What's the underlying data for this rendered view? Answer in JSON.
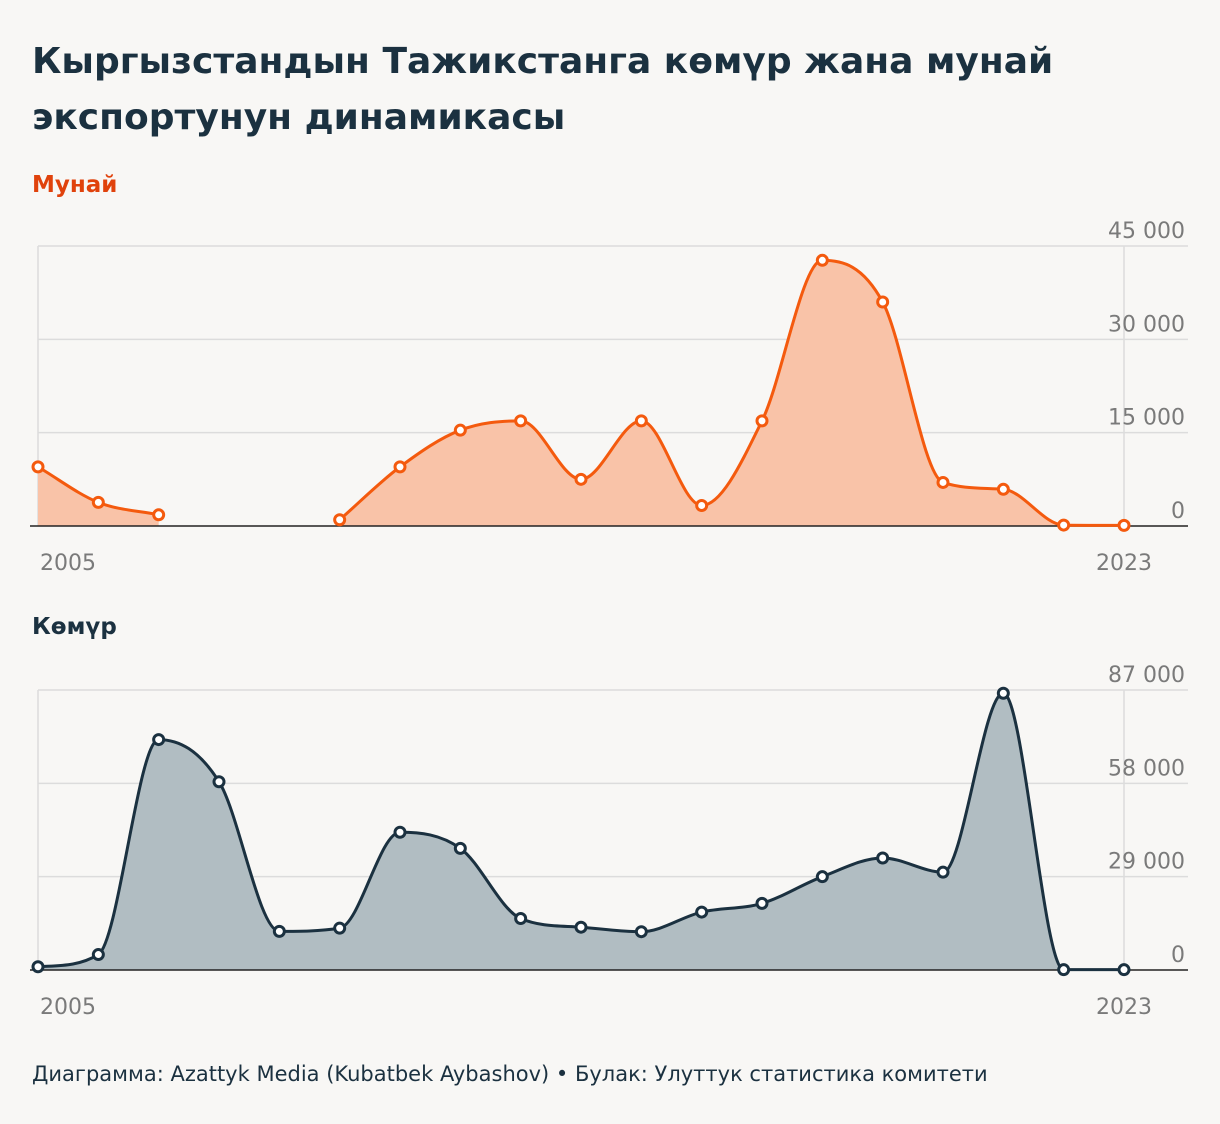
{
  "title": "Кыргызстандын Тажикстанга көмүр жана мунай экспортунун динамикасы",
  "source": "Диаграмма: Azattyk Media (Kubatbek Aybashov) • Булак: Улуттук статистика комитети",
  "colors": {
    "oil_line": "#f45a0e",
    "oil_fill": "#f9c3a8",
    "coal_line": "#1b3140",
    "coal_fill": "#b1bdc2",
    "grid": "#dcdcdc",
    "tick_text": "#7a7a7a"
  },
  "chart_data": [
    {
      "type": "area",
      "name": "Мунай",
      "x": [
        2005,
        2006,
        2007,
        2008,
        2009,
        2010,
        2011,
        2012,
        2013,
        2014,
        2015,
        2016,
        2017,
        2018,
        2019,
        2020,
        2021,
        2022,
        2023
      ],
      "values": [
        9500,
        3800,
        1800,
        null,
        null,
        1000,
        9500,
        15400,
        16900,
        7500,
        16900,
        3300,
        16900,
        42700,
        36000,
        7000,
        5900,
        150,
        100
      ],
      "ylim": [
        0,
        45000
      ],
      "yticks": [
        0,
        15000,
        30000,
        45000
      ],
      "ytick_labels": [
        "0",
        "15 000",
        "30 000",
        "45 000"
      ],
      "xtick_labels": [
        "2005",
        "2023"
      ],
      "grid": true,
      "y_axis_side": "right"
    },
    {
      "type": "area",
      "name": "Көмүр",
      "x": [
        2005,
        2006,
        2007,
        2008,
        2009,
        2010,
        2011,
        2012,
        2013,
        2014,
        2015,
        2016,
        2017,
        2018,
        2019,
        2020,
        2021,
        2022,
        2023
      ],
      "values": [
        1000,
        4800,
        71600,
        58500,
        12000,
        13000,
        42800,
        37800,
        16000,
        13300,
        11900,
        18000,
        20700,
        29000,
        34800,
        30400,
        86000,
        100,
        100
      ],
      "ylim": [
        0,
        87000
      ],
      "yticks": [
        0,
        29000,
        58000,
        87000
      ],
      "ytick_labels": [
        "0",
        "29 000",
        "58 000",
        "87 000"
      ],
      "xtick_labels": [
        "2005",
        "2023"
      ],
      "grid": true,
      "y_axis_side": "right"
    }
  ]
}
